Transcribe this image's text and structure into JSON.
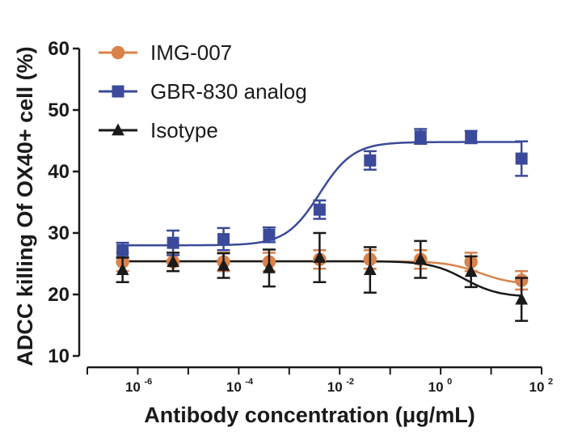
{
  "chart_data": {
    "type": "scatter",
    "xlabel": "Antibody concentration (μg/mL)",
    "ylabel": "ADCC killing Of OX40+ cell (%)",
    "x_scale": "log",
    "xlim": [
      1e-07,
      100
    ],
    "ylim": [
      10,
      60
    ],
    "y_ticks": [
      10,
      20,
      30,
      40,
      50,
      60
    ],
    "x_ticks": [
      {
        "base": "10",
        "exp": "-6",
        "value": 1e-06
      },
      {
        "base": "10",
        "exp": "-4",
        "value": 0.0001
      },
      {
        "base": "10",
        "exp": "-2",
        "value": 0.01
      },
      {
        "base": "10",
        "exp": "0",
        "value": 1
      },
      {
        "base": "10",
        "exp": "2",
        "value": 100
      }
    ],
    "legend_position": "top-left",
    "grid": false,
    "x": [
      5e-07,
      5e-06,
      5e-05,
      0.0004,
      0.004,
      0.04,
      0.4,
      4,
      40
    ],
    "series": [
      {
        "name": "IMG-007",
        "color": "#d9824a",
        "marker": "circle",
        "values": [
          25.3,
          25.3,
          25.3,
          25.3,
          25.7,
          25.7,
          25.7,
          25.3,
          22.3
        ],
        "errors": [
          1.5,
          1.5,
          1.5,
          1.5,
          1.5,
          1.5,
          1.5,
          1.5,
          1.5
        ],
        "fit": {
          "bottom": 25.4,
          "top": 21.6,
          "ec50": 6
        }
      },
      {
        "name": "GBR-830 analog",
        "color": "#3b4a9a",
        "marker": "square",
        "values": [
          27.2,
          28.4,
          29.0,
          29.7,
          33.8,
          41.8,
          45.7,
          45.6,
          42.1
        ],
        "errors": [
          1.2,
          2.0,
          1.8,
          1.2,
          1.5,
          1.5,
          1.2,
          1.0,
          2.8
        ],
        "fit": {
          "bottom": 28.0,
          "top": 44.8,
          "ec50": 0.004
        }
      },
      {
        "name": "Isotype",
        "color": "#1a1a1a",
        "marker": "triangle",
        "values": [
          24.0,
          25.3,
          24.7,
          24.3,
          26.0,
          24.0,
          25.7,
          23.7,
          19.2
        ],
        "errors": [
          2.0,
          1.5,
          2.0,
          3.0,
          4.0,
          3.7,
          3.0,
          2.5,
          3.5
        ],
        "fit": {
          "bottom": 25.4,
          "top": 19.6,
          "ec50": 3
        }
      }
    ]
  }
}
